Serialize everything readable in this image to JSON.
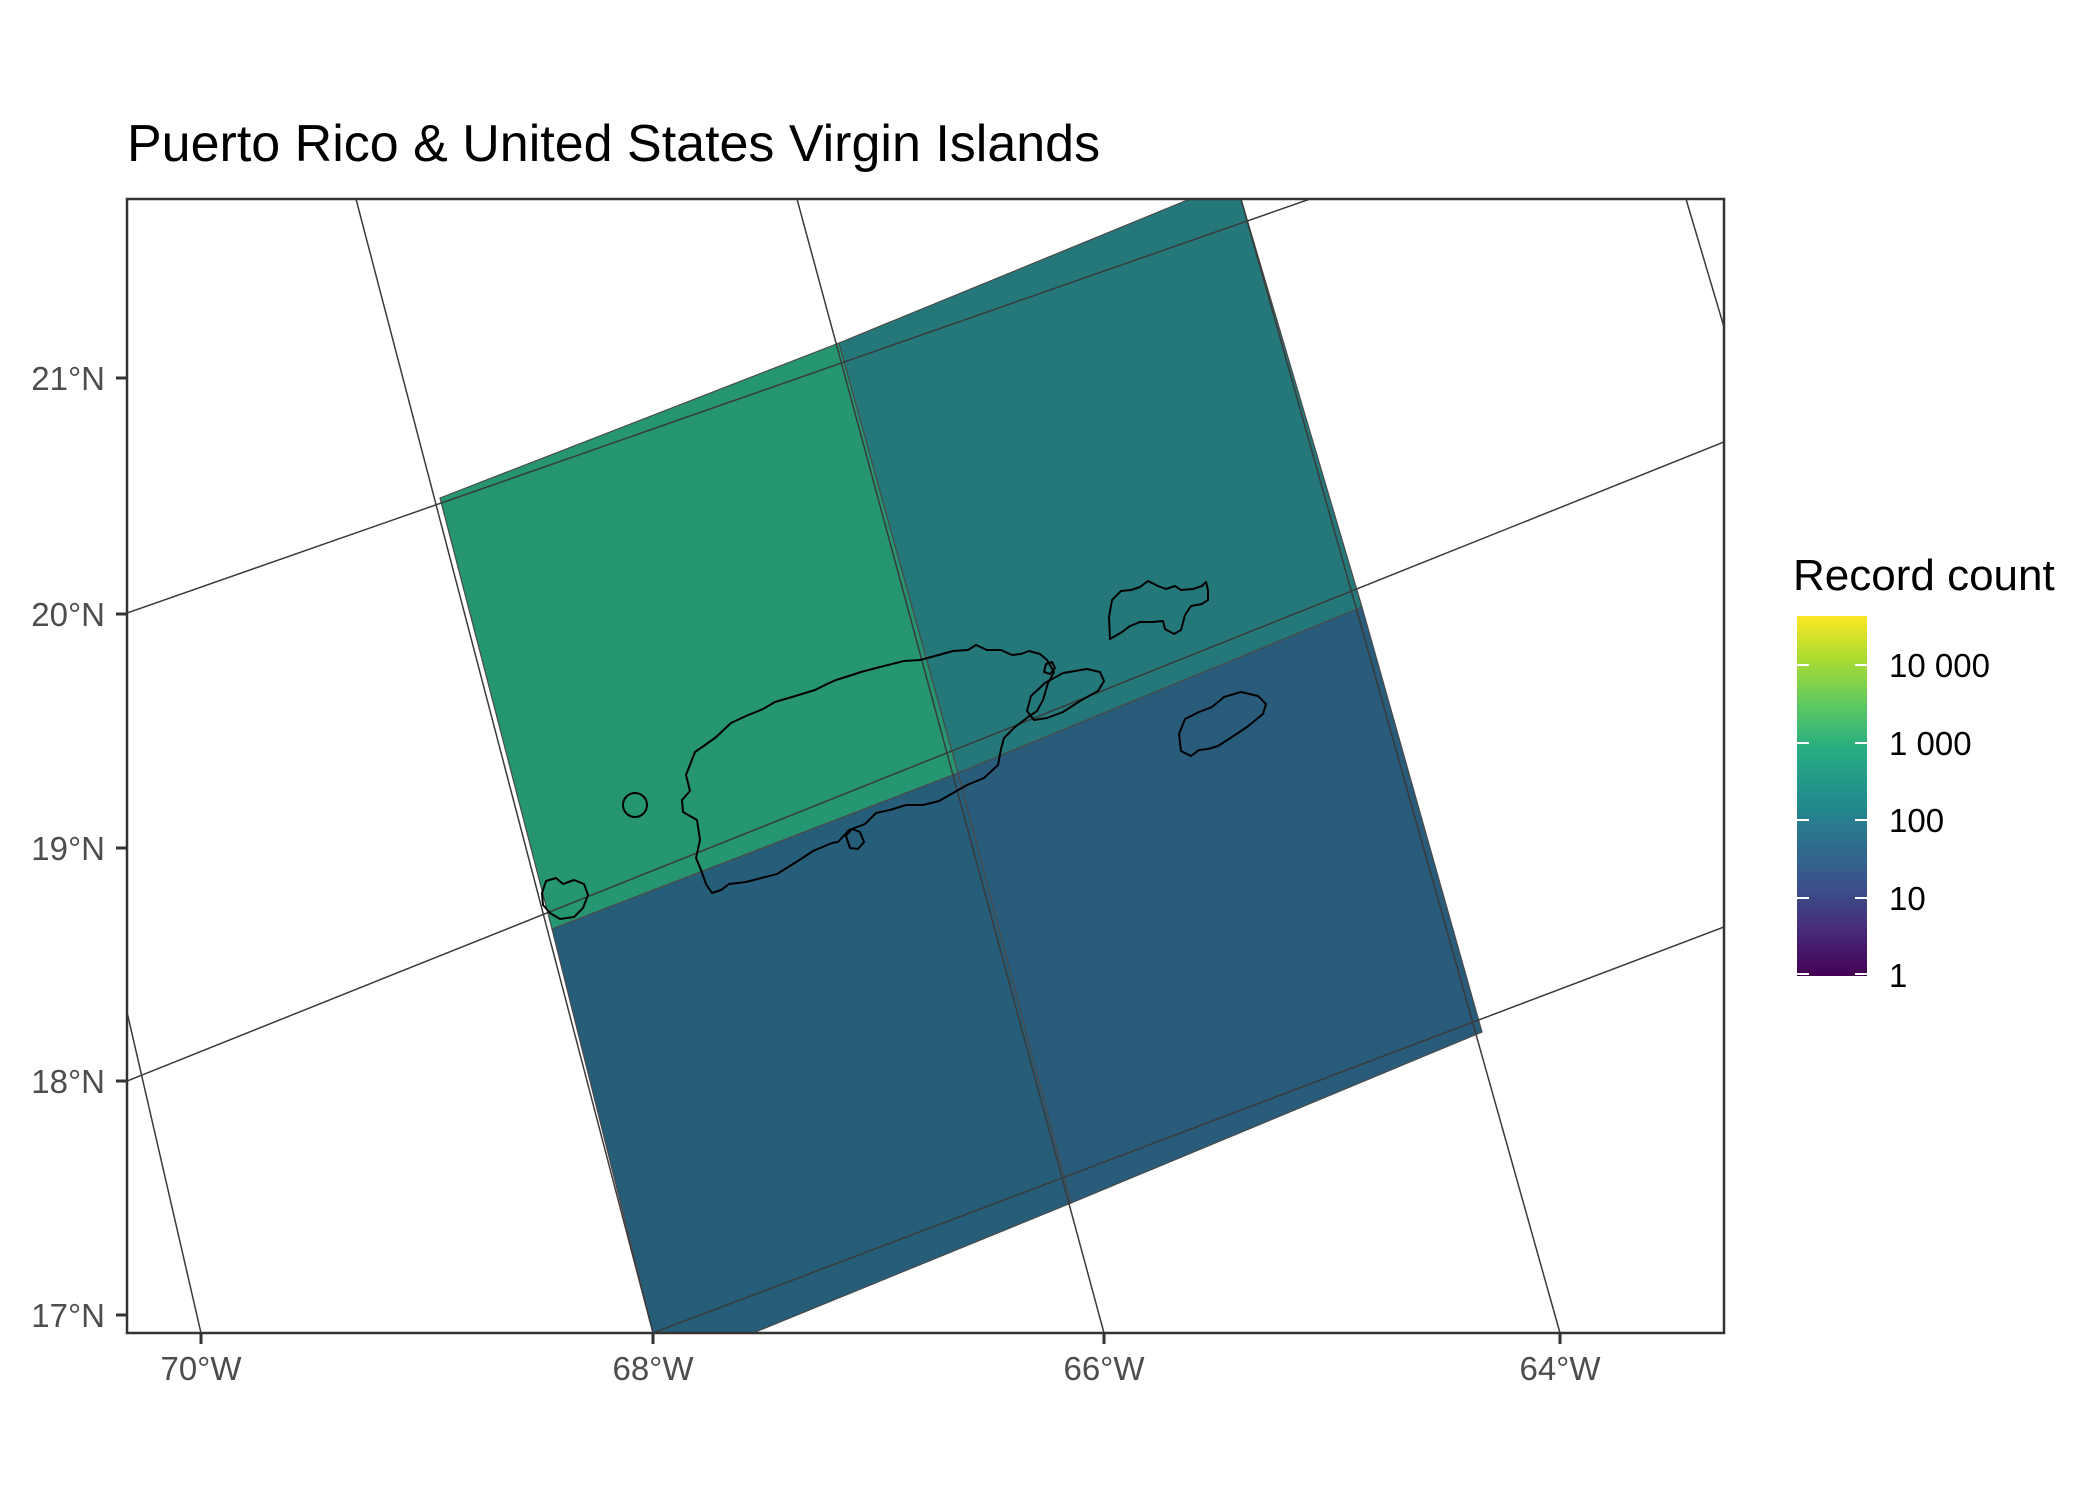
{
  "title": "Puerto Rico & United States Virgin Islands",
  "y_axis": {
    "ticks": [
      "21°N",
      "20°N",
      "19°N",
      "18°N",
      "17°N"
    ]
  },
  "x_axis": {
    "ticks": [
      "70°W",
      "68°W",
      "66°W",
      "64°W"
    ]
  },
  "legend": {
    "title": "Record count",
    "scale": "log10",
    "colormap": "viridis",
    "labels": [
      "10 000",
      "1 000",
      "100",
      "10",
      "1"
    ],
    "colors": {
      "max": "#fde725",
      "min": "#440154"
    }
  },
  "colors": {
    "cell_nw": "#259572",
    "cell_ne": "#24787a",
    "cell_sw": "#265e79",
    "cell_se": "#295b7a",
    "land_outline": "#000000",
    "graticule": "#3a3a3a"
  },
  "grid_cells": [
    {
      "position": "north-west",
      "record_count_order": "1 000"
    },
    {
      "position": "north-east",
      "record_count_order": "100"
    },
    {
      "position": "south-west",
      "record_count_order": "100"
    },
    {
      "position": "south-east",
      "record_count_order": "100"
    }
  ],
  "features": [
    {
      "name": "Puerto Rico",
      "type": "island"
    },
    {
      "name": "Vieques",
      "type": "island"
    },
    {
      "name": "Culebra",
      "type": "island"
    },
    {
      "name": "St. Thomas / St. John",
      "type": "island"
    },
    {
      "name": "St. Croix",
      "type": "island"
    },
    {
      "name": "Mona",
      "type": "island"
    },
    {
      "name": "Desecheo",
      "type": "island"
    }
  ]
}
